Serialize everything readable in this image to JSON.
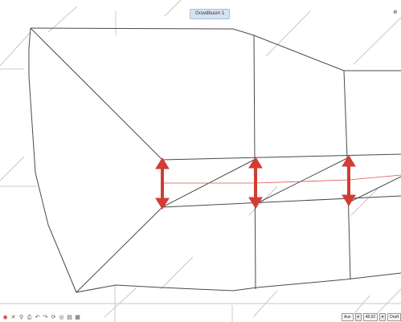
{
  "view_tab": {
    "label": "Gruvdbusnr 1"
  },
  "corner_icon": "pin-icon",
  "toolbar": {
    "buttons": [
      {
        "name": "record-icon",
        "glyph": "◉"
      },
      {
        "name": "cross-icon",
        "glyph": "✕"
      },
      {
        "name": "zoom-icon",
        "glyph": "🔍"
      },
      {
        "name": "print-icon",
        "glyph": "⎙"
      },
      {
        "name": "undo-icon",
        "glyph": "↶"
      },
      {
        "name": "redo-icon",
        "glyph": "↷"
      },
      {
        "name": "rotate-icon",
        "glyph": "⟳"
      },
      {
        "name": "eye-icon",
        "glyph": "◉"
      },
      {
        "name": "layers-icon",
        "glyph": "▤"
      },
      {
        "name": "grid-icon",
        "glyph": "▦"
      }
    ]
  },
  "status": {
    "field1": "Aux",
    "field2": "48,02",
    "field3": "Draft"
  },
  "colors": {
    "arrow": "#d23c33",
    "sightline": "#e05050",
    "lines": "#444444",
    "guides": "#bfbfbf"
  }
}
